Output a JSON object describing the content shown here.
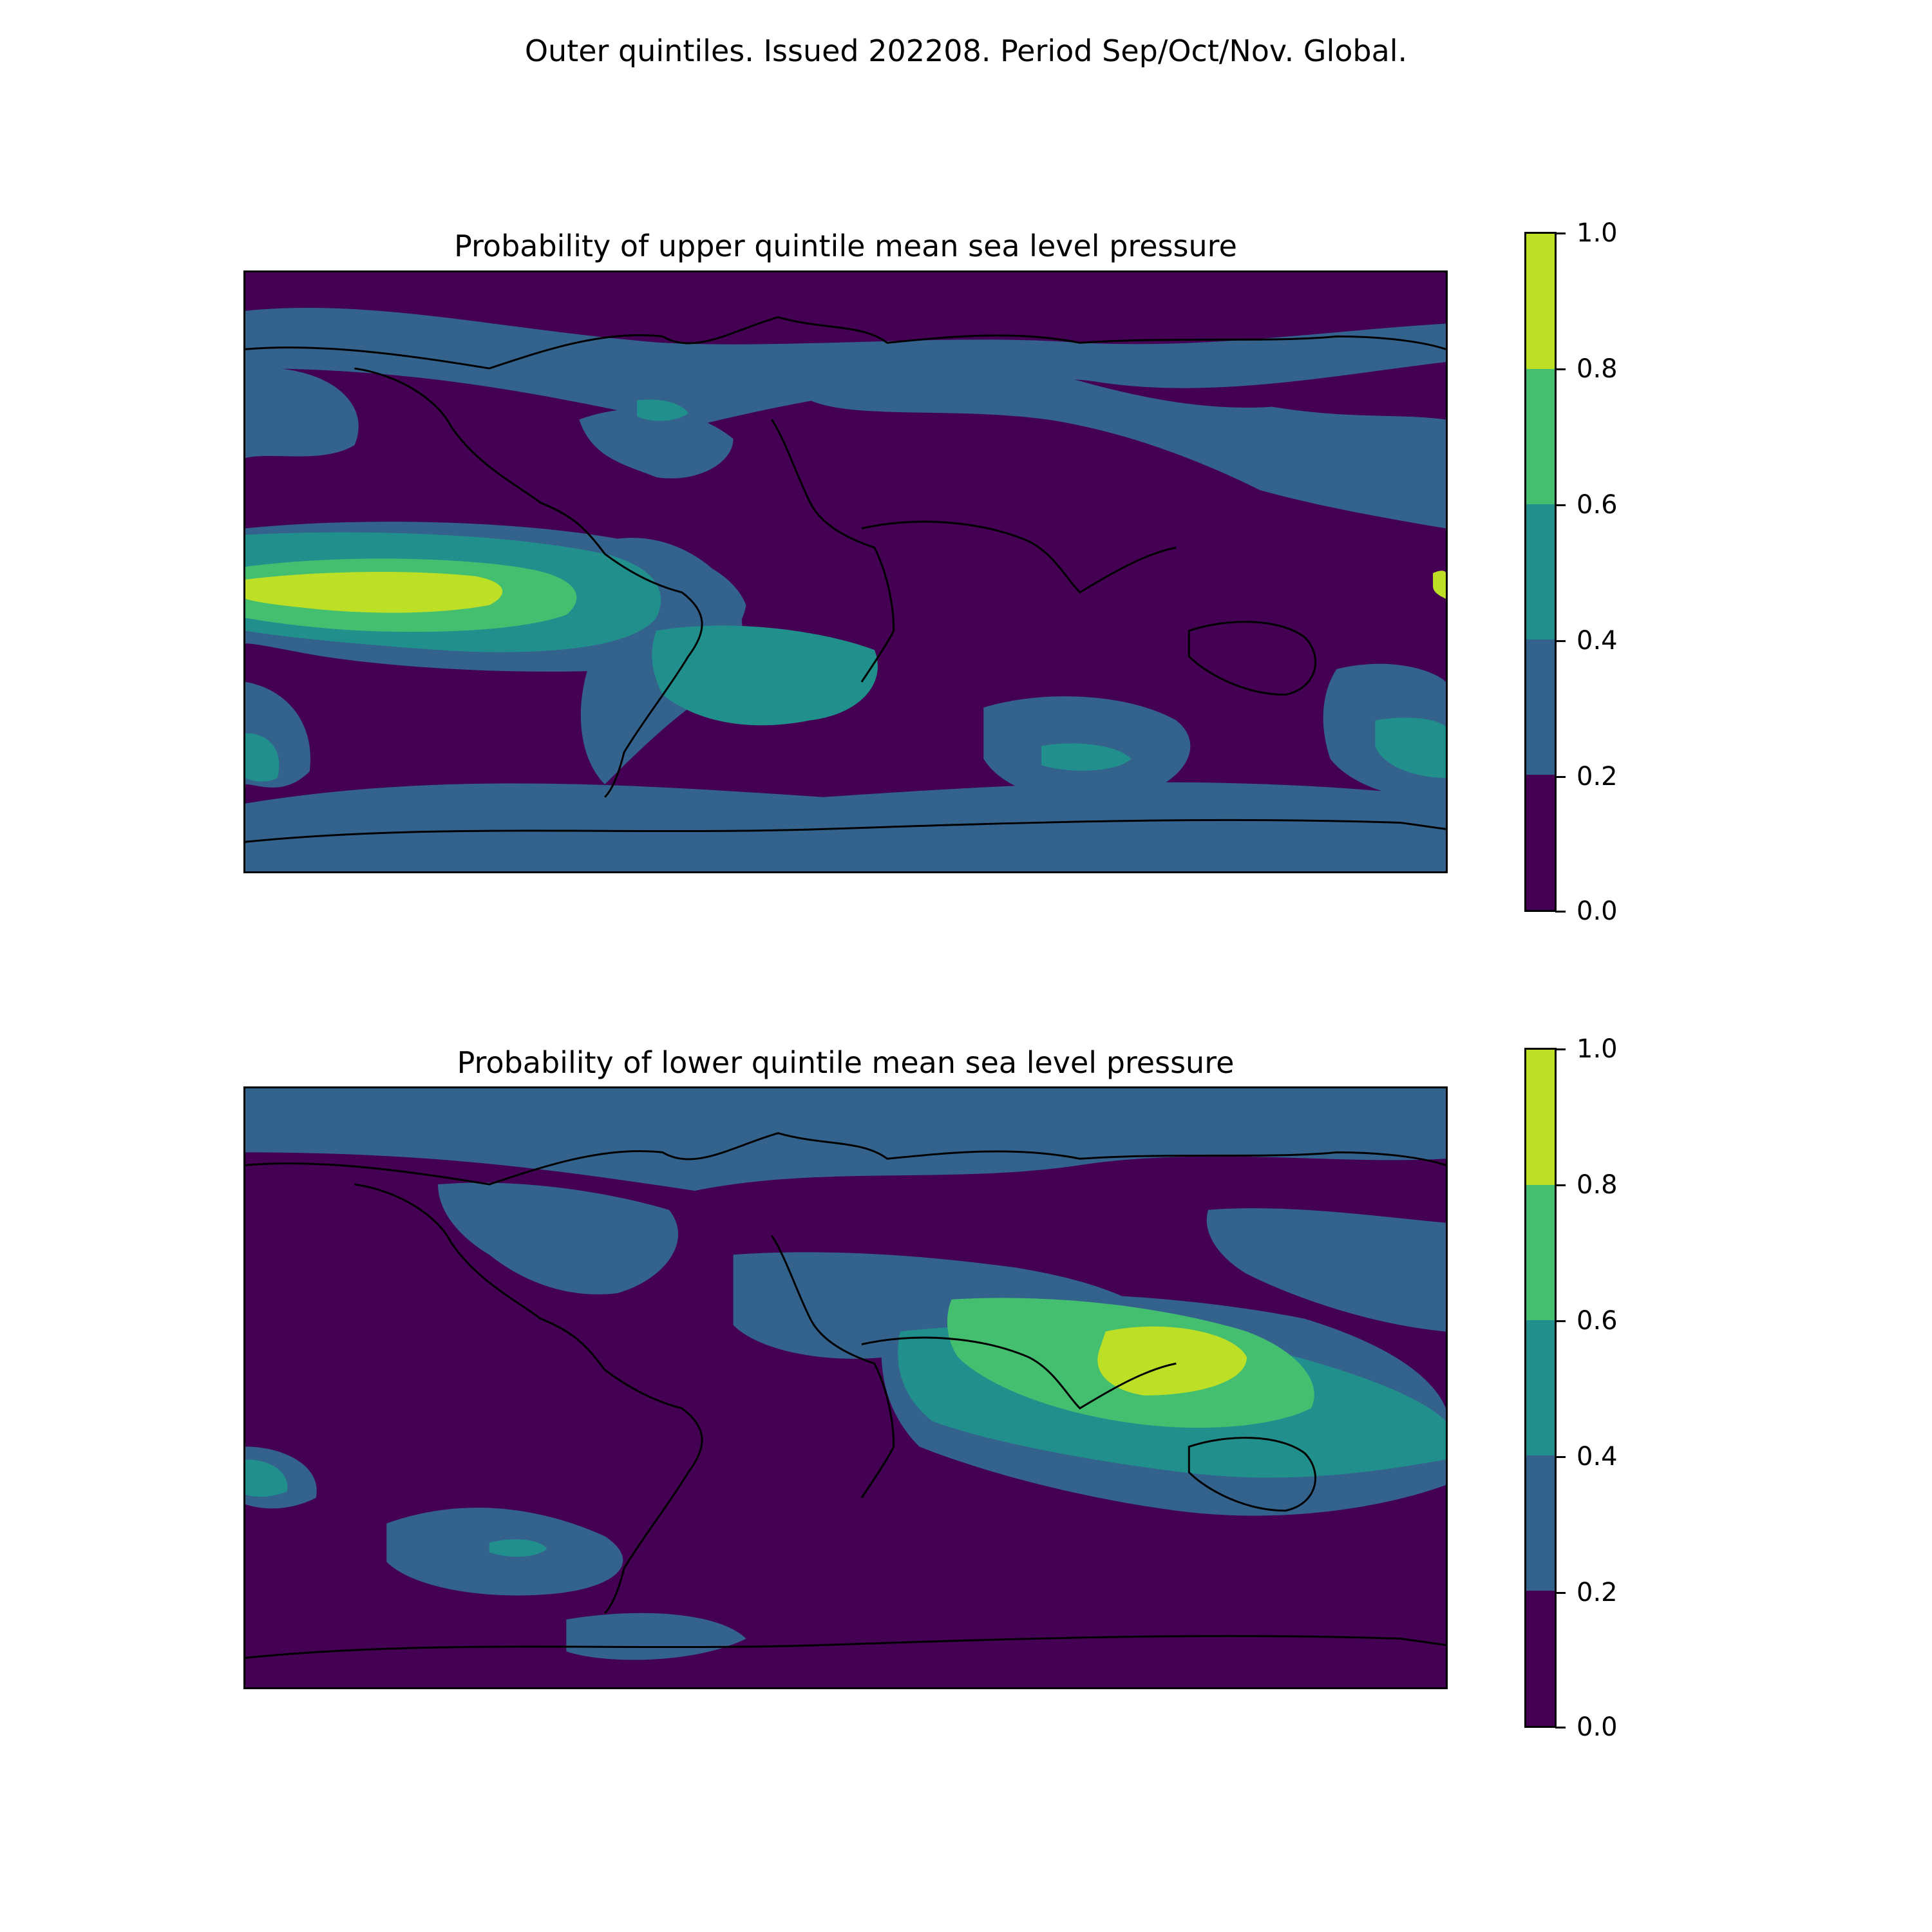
{
  "figure": {
    "title": "Outer quintiles. Issued 202208. Period Sep/Oct/Nov. Global."
  },
  "panels": [
    {
      "title": "Probability of upper quintile mean sea level pressure",
      "background_level": 0,
      "regions": [
        {
          "name": "arctic-band",
          "level": 1
        },
        {
          "name": "north-pacific",
          "level": 1
        },
        {
          "name": "north-atlantic",
          "level": 1
        },
        {
          "name": "eurasia-north",
          "level": 1
        },
        {
          "name": "newfoundland",
          "level": 2
        },
        {
          "name": "tropical-pacific",
          "level": 1
        },
        {
          "name": "tropical-pacific",
          "level": 2
        },
        {
          "name": "tropical-pacific",
          "level": 3
        },
        {
          "name": "tropical-pacific-core",
          "level": 4
        },
        {
          "name": "south-america",
          "level": 1
        },
        {
          "name": "south-atlantic",
          "level": 2
        },
        {
          "name": "south-indian",
          "level": 1
        },
        {
          "name": "south-indian",
          "level": 2
        },
        {
          "name": "tasman",
          "level": 1
        },
        {
          "name": "tasman",
          "level": 2
        },
        {
          "name": "east-pacific-edge",
          "level": 2
        },
        {
          "name": "west-pacific-edge",
          "level": 4
        },
        {
          "name": "antarctica",
          "level": 1
        }
      ]
    },
    {
      "title": "Probability of lower quintile mean sea level pressure",
      "background_level": 0,
      "regions": [
        {
          "name": "arctic-band",
          "level": 1
        },
        {
          "name": "north-pacific-west",
          "level": 1
        },
        {
          "name": "north-america",
          "level": 1
        },
        {
          "name": "africa-north",
          "level": 1
        },
        {
          "name": "indian-ocean",
          "level": 1
        },
        {
          "name": "indian-ocean",
          "level": 2
        },
        {
          "name": "indian-ocean",
          "level": 3
        },
        {
          "name": "maritime-continent",
          "level": 4
        },
        {
          "name": "east-pacific-edge",
          "level": 2
        },
        {
          "name": "south-pacific",
          "level": 1
        },
        {
          "name": "south-pacific",
          "level": 2
        },
        {
          "name": "antarctica-edge",
          "level": 1
        }
      ]
    }
  ],
  "colorbar": {
    "levels": [
      0.0,
      0.2,
      0.4,
      0.6,
      0.8,
      1.0
    ],
    "tick_labels": [
      "0.0",
      "0.2",
      "0.4",
      "0.6",
      "0.8",
      "1.0"
    ],
    "colors": [
      "#440154",
      "#33638d",
      "#21908d",
      "#44bf70",
      "#bddf26"
    ]
  },
  "coastline_color": "#000000"
}
